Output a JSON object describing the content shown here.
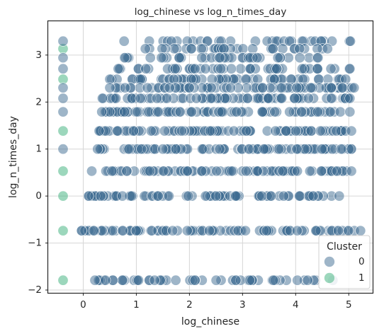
{
  "chart_data": {
    "type": "scatter",
    "title": "log_chinese vs log_n_times_day",
    "xlabel": "log_chinese",
    "ylabel": "log_n_times_day",
    "xlim": [
      -0.66,
      5.45
    ],
    "ylim": [
      -2.06,
      3.72
    ],
    "xticks": [
      0,
      1,
      2,
      3,
      4,
      5
    ],
    "yticks": [
      -2,
      -1,
      0,
      1,
      2,
      3
    ],
    "xtick_labels": [
      "0",
      "1",
      "2",
      "3",
      "4",
      "5"
    ],
    "ytick_labels": [
      "−2",
      "−1",
      "0",
      "1",
      "2",
      "3"
    ],
    "grid": true,
    "legend": {
      "title": "Cluster",
      "placement": "lower-right"
    },
    "series": [
      {
        "name": "0",
        "color": "#3e6c92",
        "levels": [
          {
            "y": 3.296,
            "x_min": 0.77,
            "x_max": 5.03,
            "density": 0.35
          },
          {
            "y": 3.135,
            "x_min": 1.17,
            "x_max": 4.6,
            "density": 0.45
          },
          {
            "y": 2.944,
            "x_min": 0.78,
            "x_max": 4.42,
            "density": 0.5
          },
          {
            "y": 2.708,
            "x_min": 0.66,
            "x_max": 5.02,
            "density": 0.55
          },
          {
            "y": 2.485,
            "x_min": 0.5,
            "x_max": 4.94,
            "density": 0.65
          },
          {
            "y": 2.303,
            "x_min": 0.5,
            "x_max": 5.1,
            "density": 0.75
          },
          {
            "y": 2.079,
            "x_min": 0.36,
            "x_max": 5.02,
            "density": 0.85
          },
          {
            "y": 1.792,
            "x_min": 0.35,
            "x_max": 5.02,
            "density": 0.85
          },
          {
            "y": 1.386,
            "x_min": 0.3,
            "x_max": 5.05,
            "density": 0.9
          },
          {
            "y": 1.0,
            "x_min": 0.27,
            "x_max": 5.05,
            "density": 0.9
          },
          {
            "y": 0.531,
            "x_min": 0.16,
            "x_max": 5.05,
            "density": 0.85
          },
          {
            "y": 0.0,
            "x_min": 0.1,
            "x_max": 4.82,
            "density": 0.85
          },
          {
            "y": -0.737,
            "x_min": -0.03,
            "x_max": 5.22,
            "density": 0.8
          },
          {
            "y": -1.792,
            "x_min": 0.22,
            "x_max": 4.7,
            "density": 0.55
          }
        ]
      },
      {
        "name": "1",
        "color": "#39b07a",
        "points": [
          {
            "x": -0.38,
            "y": 3.135
          },
          {
            "x": -0.38,
            "y": 2.485
          },
          {
            "x": -0.38,
            "y": 1.386
          },
          {
            "x": -0.38,
            "y": 0.531
          },
          {
            "x": -0.38,
            "y": 0.0
          },
          {
            "x": -0.38,
            "y": -0.737
          },
          {
            "x": -0.38,
            "y": -1.792
          }
        ]
      },
      {
        "name": "0",
        "color": "#3e6c92",
        "points": [
          {
            "x": -0.38,
            "y": 3.296
          },
          {
            "x": -0.38,
            "y": 2.944
          },
          {
            "x": -0.38,
            "y": 2.708
          },
          {
            "x": -0.38,
            "y": 2.303
          },
          {
            "x": -0.38,
            "y": 2.079
          },
          {
            "x": -0.38,
            "y": 1.792
          },
          {
            "x": -0.38,
            "y": 1.0
          }
        ]
      }
    ]
  }
}
